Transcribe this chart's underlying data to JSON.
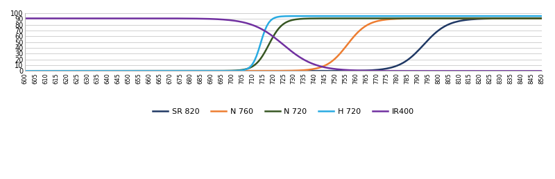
{
  "x_min": 600,
  "x_max": 850,
  "x_step": 5,
  "y_min": 0,
  "y_max": 100,
  "y_ticks": [
    0,
    10,
    20,
    30,
    40,
    50,
    60,
    70,
    80,
    90,
    100
  ],
  "series": {
    "SR 820": {
      "color": "#1f3864",
      "midpoint": 793,
      "steepness": 0.17,
      "max_val": 91,
      "min_val": 0,
      "direction": "up"
    },
    "N 760": {
      "color": "#ed7d31",
      "midpoint": 756,
      "steepness": 0.2,
      "max_val": 91,
      "min_val": 0,
      "direction": "up"
    },
    "N 720": {
      "color": "#375623",
      "midpoint": 718,
      "steepness": 0.3,
      "max_val": 91,
      "min_val": 0,
      "direction": "up"
    },
    "H 720": {
      "color": "#29abe2",
      "midpoint": 714,
      "steepness": 0.5,
      "max_val": 95,
      "min_val": 0,
      "direction": "up"
    },
    "IR400": {
      "color": "#7030a0",
      "midpoint": 725,
      "steepness": 0.13,
      "max_val": 91,
      "min_val": 0,
      "direction": "down"
    }
  },
  "legend_order": [
    "SR 820",
    "N 760",
    "N 720",
    "H 720",
    "IR400"
  ],
  "background_color": "#ffffff",
  "grid_color": "#d0d0d0",
  "line_width": 1.8
}
